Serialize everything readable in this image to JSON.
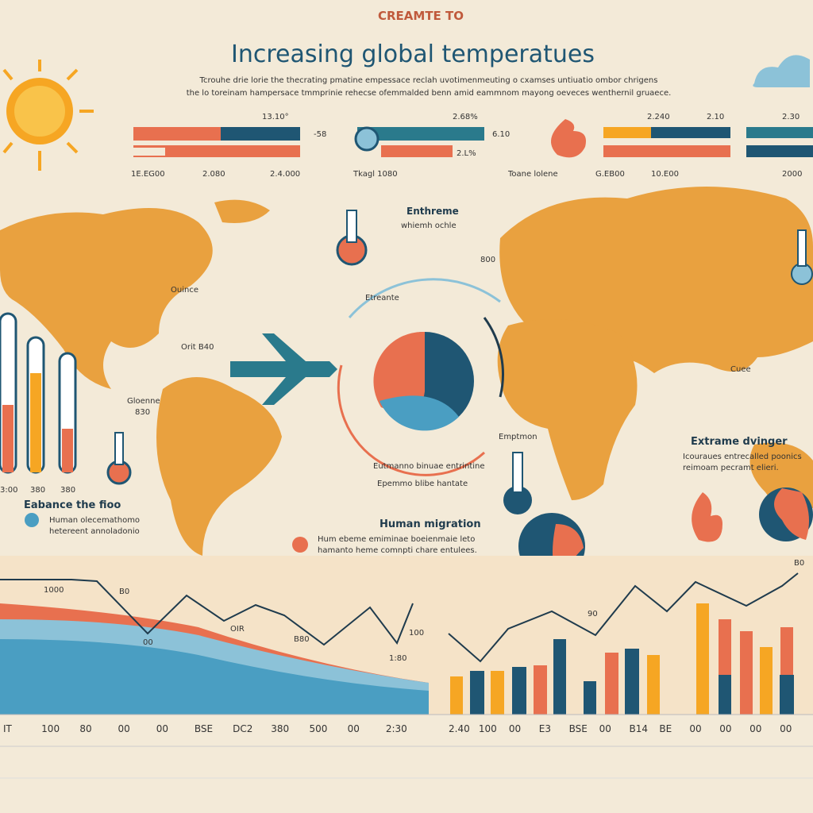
{
  "header": {
    "kicker": "CREAMTE TO",
    "title": "Increasing global temperatues",
    "intro": [
      "Tcrouhe drie lorie the thecrating pmatine empessace reclah uvotimenmeuting o cxamses untiuatio ombor chrigens",
      "the lo toreinam hampersace tmmprinie rehecse ofemmalded benn amid eammnom mayong oeveces wenthernil gruaece."
    ]
  },
  "top_stats": [
    "13.10°",
    "-58",
    "1E.EG00",
    "2.080",
    "2.4.000",
    "2.68%",
    "6.10",
    "2.L%",
    "Tkagl 1080",
    "2.240",
    "2.10",
    "2.30",
    "Toane lolene",
    "G.EB00",
    "10.E00",
    "2000"
  ],
  "map_labels": [
    "Enthreme",
    "whiemh ochle",
    "800",
    "Orit B40",
    "Gloenne",
    "830",
    "Ouince",
    "Emptmon",
    "Cuee"
  ],
  "thermometers": [
    "3:00",
    "380",
    "380"
  ],
  "cycle": {
    "title": "Etreante",
    "lines": [
      "Eutmanno binuae entrintine",
      "Epemmo blibe hantate"
    ]
  },
  "callouts": [
    {
      "title": "Eabance the fioo",
      "lines": [
        "Human olecemathomo",
        "hetereent annoladonio"
      ]
    },
    {
      "title": "Human migration",
      "lines": [
        "Hum ebeme emiminae boeienmaie leto",
        "hamanto heme comnpti chare entulees."
      ]
    },
    {
      "title": "Extrame dvinger",
      "lines": [
        "Icouraues entrecalled poonics",
        "reimoam pecramt elieri."
      ]
    }
  ],
  "bottom_chart": {
    "point_labels": [
      "1000",
      "B0",
      "00",
      "OIR",
      "B80",
      "100",
      "1:80",
      "90",
      "B0"
    ],
    "axis_labels": [
      "IT",
      "100",
      "80",
      "00",
      "00",
      "BSE",
      "DC2",
      "380",
      "500",
      "00",
      "2:30",
      "2.40",
      "100",
      "00",
      "E3",
      "BSE",
      "00",
      "B14",
      "BE",
      "00",
      "00",
      "00",
      "00"
    ]
  }
}
